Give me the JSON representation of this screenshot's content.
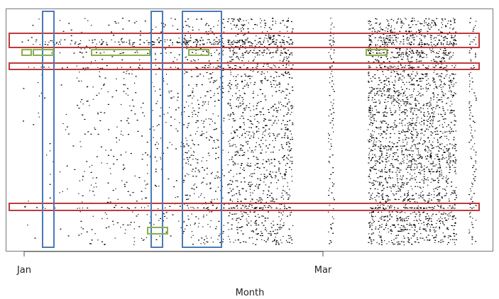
{
  "chart_data": {
    "type": "scatter",
    "title": "",
    "xlabel": "Month",
    "ylabel": "",
    "xticks": [
      "Jan",
      "Mar"
    ],
    "grid": false,
    "legend": "none",
    "colors": {
      "points": "#000000",
      "row_highlight": "#c0393b",
      "column_highlight": "#4a7ab8",
      "cluster_highlight": "#8ab04a",
      "frame": "#777777"
    }
  }
}
